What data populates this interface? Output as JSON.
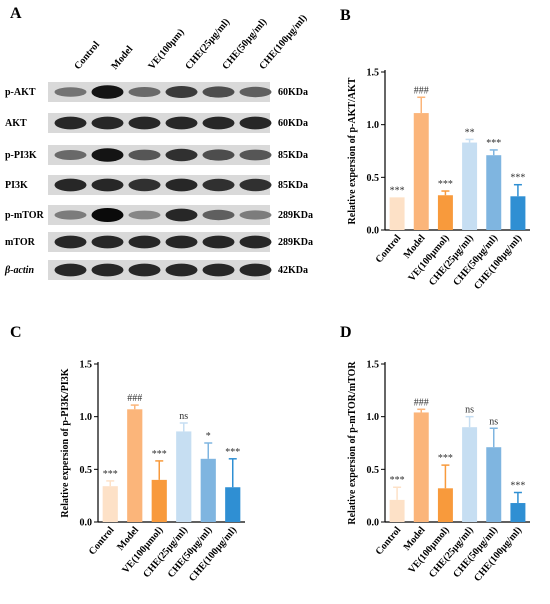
{
  "panel_a": {
    "letter": "A",
    "lanes": [
      "Control",
      "Model",
      "VE(100μm)",
      "CHE(25μg/ml)",
      "CHE(50μg/ml)",
      "CHE(100μg/ml)"
    ],
    "blots": [
      {
        "label": "p-AKT",
        "kda": "60KDa",
        "intensity": [
          0.45,
          0.95,
          0.5,
          0.75,
          0.65,
          0.55
        ]
      },
      {
        "label": "AKT",
        "kda": "60KDa",
        "intensity": [
          0.85,
          0.85,
          0.85,
          0.85,
          0.85,
          0.85
        ]
      },
      {
        "label": "p-PI3K",
        "kda": "85KDa",
        "intensity": [
          0.5,
          0.95,
          0.6,
          0.8,
          0.65,
          0.6
        ]
      },
      {
        "label": "PI3K",
        "kda": "85KDa",
        "intensity": [
          0.85,
          0.85,
          0.8,
          0.85,
          0.8,
          0.8
        ]
      },
      {
        "label": "p-mTOR",
        "kda": "289KDa",
        "intensity": [
          0.4,
          1.0,
          0.35,
          0.85,
          0.55,
          0.4
        ]
      },
      {
        "label": "mTOR",
        "kda": "289KDa",
        "intensity": [
          0.85,
          0.85,
          0.85,
          0.85,
          0.85,
          0.85
        ]
      },
      {
        "label": "β-actin",
        "kda": "42KDa",
        "intensity": [
          0.85,
          0.85,
          0.85,
          0.85,
          0.85,
          0.85
        ]
      }
    ]
  },
  "chart_data": [
    {
      "letter": "B",
      "type": "bar",
      "ylabel": "Relative expersion of p-AKT/AKT",
      "ylim": [
        0,
        1.5
      ],
      "yticks": [
        "0.0",
        "0.5",
        "1.0",
        "1.5"
      ],
      "categories": [
        "Control",
        "Model",
        "VE(100μmol)",
        "CHE(25μg/ml)",
        "CHE(50μg/ml)",
        "CHE(100μg/ml)"
      ],
      "values": [
        0.31,
        1.11,
        0.33,
        0.83,
        0.71,
        0.32
      ],
      "errors": [
        0.0,
        0.15,
        0.04,
        0.03,
        0.05,
        0.11
      ],
      "annotations": [
        "***",
        "###",
        "***",
        "**",
        "***",
        "***"
      ],
      "colors": [
        "#fde1c7",
        "#fbb57a",
        "#f89a3c",
        "#c6def2",
        "#7fb5e0",
        "#2f8fd3"
      ]
    },
    {
      "letter": "C",
      "type": "bar",
      "ylabel": "Relative expersion of p-PI3K/PI3K",
      "ylim": [
        0,
        1.5
      ],
      "yticks": [
        "0.0",
        "0.5",
        "1.0",
        "1.5"
      ],
      "categories": [
        "Control",
        "Model",
        "VE(100μmol)",
        "CHE(25μg/ml)",
        "CHE(50μg/ml)",
        "CHE(100μg/ml)"
      ],
      "values": [
        0.34,
        1.07,
        0.4,
        0.86,
        0.6,
        0.33
      ],
      "errors": [
        0.05,
        0.04,
        0.18,
        0.08,
        0.15,
        0.27
      ],
      "annotations": [
        "***",
        "###",
        "***",
        "ns",
        "*",
        "***"
      ],
      "colors": [
        "#fde1c7",
        "#fbb57a",
        "#f89a3c",
        "#c6def2",
        "#7fb5e0",
        "#2f8fd3"
      ]
    },
    {
      "letter": "D",
      "type": "bar",
      "ylabel": "Relative expersion of p-mTOR/mTOR",
      "ylim": [
        0,
        1.5
      ],
      "yticks": [
        "0.0",
        "0.5",
        "1.0",
        "1.5"
      ],
      "categories": [
        "Control",
        "Model",
        "VE(100μmol)",
        "CHE(25μg/ml)",
        "CHE(50μg/ml)",
        "CHE(100μg/ml)"
      ],
      "values": [
        0.21,
        1.04,
        0.32,
        0.9,
        0.71,
        0.18
      ],
      "errors": [
        0.12,
        0.03,
        0.22,
        0.1,
        0.18,
        0.1
      ],
      "annotations": [
        "***",
        "###",
        "***",
        "ns",
        "ns",
        "***"
      ],
      "colors": [
        "#fde1c7",
        "#fbb57a",
        "#f89a3c",
        "#c6def2",
        "#7fb5e0",
        "#2f8fd3"
      ]
    }
  ]
}
